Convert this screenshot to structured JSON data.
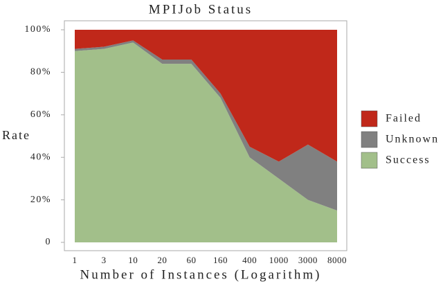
{
  "chart_data": {
    "type": "stacked_area",
    "title": "MPIJob Status",
    "x_label": "Number of Instances (Logarithm)",
    "y_label": "Rate",
    "categories": [
      "1",
      "3",
      "10",
      "20",
      "60",
      "160",
      "400",
      "1000",
      "3000",
      "8000"
    ],
    "series": [
      {
        "name": "Failed",
        "color": "#c0281a",
        "values": [
          9,
          8,
          5,
          14,
          14,
          30,
          55,
          62,
          54,
          62
        ]
      },
      {
        "name": "Unknown",
        "color": "#808080",
        "values": [
          1,
          1,
          1,
          2,
          2,
          2,
          5,
          8,
          26,
          23
        ]
      },
      {
        "name": "Success",
        "color": "#a2bf8a",
        "values": [
          90,
          91,
          94,
          84,
          84,
          68,
          40,
          30,
          20,
          15
        ]
      }
    ],
    "ylim": [
      0,
      100
    ],
    "yticks": [
      0,
      {
        "value": 20,
        "label": "20%"
      },
      {
        "value": 40,
        "label": "40%"
      },
      {
        "value": 60,
        "label": "60%"
      },
      {
        "value": 80,
        "label": "80%"
      },
      {
        "value": 100,
        "label": "100%"
      }
    ],
    "legend": "right"
  }
}
